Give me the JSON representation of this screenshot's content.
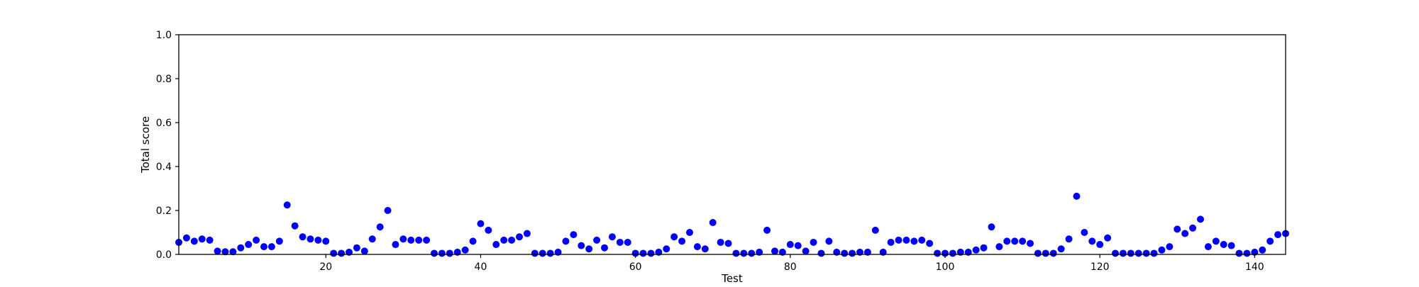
{
  "chart_data": {
    "type": "scatter",
    "title": "",
    "xlabel": "Test",
    "ylabel": "Total score",
    "xlim": [
      1,
      144
    ],
    "ylim": [
      0.0,
      1.0
    ],
    "x_ticks": [
      20,
      40,
      60,
      80,
      100,
      120,
      140
    ],
    "x_tick_labels": [
      "20",
      "40",
      "60",
      "80",
      "100",
      "120",
      "140"
    ],
    "y_ticks": [
      0.0,
      0.2,
      0.4,
      0.6,
      0.8,
      1.0
    ],
    "y_tick_labels": [
      "0.0",
      "0.2",
      "0.4",
      "0.6",
      "0.8",
      "1.0"
    ],
    "grid": false,
    "marker_color": "#0000ff",
    "series": [
      {
        "x": [
          1,
          2,
          3,
          4,
          5,
          6,
          7,
          8,
          9,
          10,
          11,
          12,
          13,
          14,
          15,
          16,
          17,
          18,
          19,
          20,
          21,
          22,
          23,
          24,
          25,
          26,
          27,
          28,
          29,
          30,
          31,
          32,
          33,
          34,
          35,
          36,
          37,
          38,
          39,
          40,
          41,
          42,
          43,
          44,
          45,
          46,
          47,
          48,
          49,
          50,
          51,
          52,
          53,
          54,
          55,
          56,
          57,
          58,
          59,
          60,
          61,
          62,
          63,
          64,
          65,
          66,
          67,
          68,
          69,
          70,
          71,
          72,
          73,
          74,
          75,
          76,
          77,
          78,
          79,
          80,
          81,
          82,
          83,
          84,
          85,
          86,
          87,
          88,
          89,
          90,
          91,
          92,
          93,
          94,
          95,
          96,
          97,
          98,
          99,
          100,
          101,
          102,
          103,
          104,
          105,
          106,
          107,
          108,
          109,
          110,
          111,
          112,
          113,
          114,
          115,
          116,
          117,
          118,
          119,
          120,
          121,
          122,
          123,
          124,
          125,
          126,
          127,
          128,
          129,
          130,
          131,
          132,
          133,
          134,
          135,
          136,
          137,
          138,
          139,
          140,
          141,
          142,
          143,
          144
        ],
        "y": [
          0.055,
          0.075,
          0.06,
          0.07,
          0.065,
          0.015,
          0.012,
          0.012,
          0.03,
          0.045,
          0.065,
          0.035,
          0.035,
          0.06,
          0.225,
          0.13,
          0.08,
          0.07,
          0.065,
          0.06,
          0.005,
          0.005,
          0.01,
          0.03,
          0.015,
          0.07,
          0.125,
          0.2,
          0.045,
          0.07,
          0.065,
          0.065,
          0.065,
          0.005,
          0.005,
          0.005,
          0.01,
          0.02,
          0.06,
          0.14,
          0.11,
          0.045,
          0.065,
          0.065,
          0.08,
          0.095,
          0.005,
          0.005,
          0.005,
          0.01,
          0.06,
          0.09,
          0.04,
          0.025,
          0.065,
          0.03,
          0.08,
          0.055,
          0.055,
          0.005,
          0.005,
          0.005,
          0.01,
          0.025,
          0.08,
          0.06,
          0.1,
          0.035,
          0.025,
          0.145,
          0.055,
          0.05,
          0.005,
          0.005,
          0.005,
          0.01,
          0.11,
          0.015,
          0.01,
          0.045,
          0.04,
          0.015,
          0.055,
          0.005,
          0.06,
          0.01,
          0.005,
          0.005,
          0.01,
          0.01,
          0.11,
          0.01,
          0.055,
          0.065,
          0.065,
          0.06,
          0.065,
          0.05,
          0.005,
          0.005,
          0.005,
          0.01,
          0.01,
          0.02,
          0.03,
          0.125,
          0.035,
          0.06,
          0.06,
          0.06,
          0.05,
          0.005,
          0.005,
          0.005,
          0.025,
          0.07,
          0.265,
          0.1,
          0.06,
          0.045,
          0.075,
          0.005,
          0.005,
          0.005,
          0.005,
          0.005,
          0.005,
          0.02,
          0.035,
          0.115,
          0.095,
          0.12,
          0.16,
          0.035,
          0.06,
          0.045,
          0.04,
          0.005,
          0.005,
          0.01,
          0.02,
          0.06,
          0.09,
          0.095
        ]
      }
    ]
  }
}
